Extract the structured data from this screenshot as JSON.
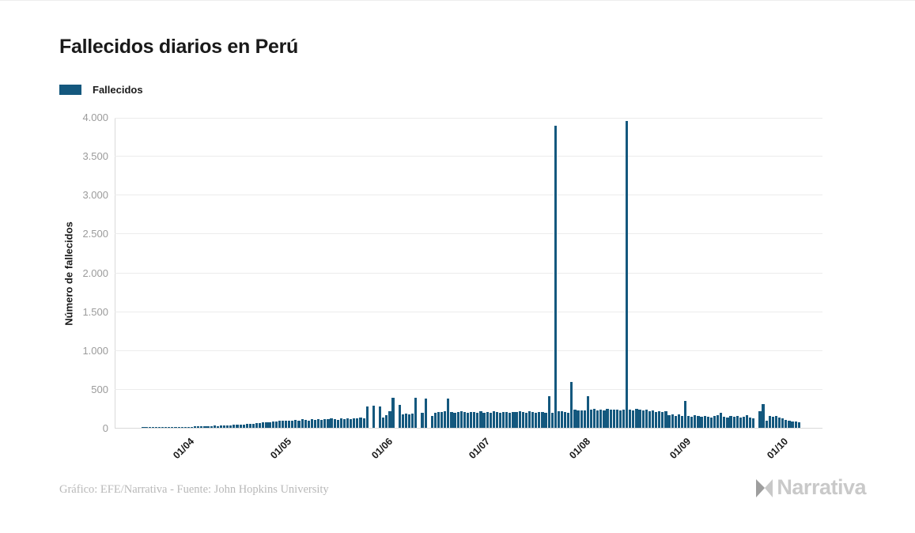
{
  "title": "Fallecidos diarios en Perú",
  "legend": {
    "label": "Fallecidos",
    "color": "#14587e"
  },
  "y_axis": {
    "title": "Número de fallecidos",
    "ticks": [
      "0",
      "500",
      "1.000",
      "1.500",
      "2.000",
      "2.500",
      "3.000",
      "3.500",
      "4.000"
    ]
  },
  "x_axis": {
    "ticks": [
      {
        "label": "01/04",
        "day_index": 22
      },
      {
        "label": "01/05",
        "day_index": 52
      },
      {
        "label": "01/06",
        "day_index": 83
      },
      {
        "label": "01/07",
        "day_index": 113
      },
      {
        "label": "01/08",
        "day_index": 144
      },
      {
        "label": "01/09",
        "day_index": 175
      },
      {
        "label": "01/10",
        "day_index": 205
      }
    ]
  },
  "footer": {
    "credit": "Gráfico: EFE/Narrativa - Fuente: John Hopkins University",
    "brand": "Narrativa"
  },
  "chart_data": {
    "type": "bar",
    "title": "Fallecidos diarios en Perú",
    "series_name": "Fallecidos",
    "xlabel": "",
    "ylabel": "Número de fallecidos",
    "ylim": [
      0,
      4000
    ],
    "y_tick_step": 500,
    "grid": "horizontal",
    "legend_position": "top-left",
    "bar_color": "#14587e",
    "x_start_date": "10/03/2020",
    "x_unit": "day",
    "x_tick_labels": [
      "01/04",
      "01/05",
      "01/06",
      "01/07",
      "01/08",
      "01/09",
      "01/10"
    ],
    "values": [
      0,
      0,
      0,
      0,
      0,
      0,
      0,
      0,
      1,
      2,
      2,
      3,
      3,
      4,
      5,
      6,
      7,
      7,
      9,
      11,
      12,
      14,
      13,
      15,
      17,
      16,
      19,
      22,
      20,
      24,
      26,
      25,
      29,
      32,
      30,
      35,
      38,
      36,
      40,
      44,
      48,
      52,
      56,
      60,
      64,
      68,
      72,
      76,
      80,
      85,
      90,
      95,
      92,
      96,
      88,
      102,
      95,
      108,
      100,
      96,
      110,
      104,
      112,
      98,
      115,
      108,
      118,
      112,
      105,
      120,
      114,
      122,
      116,
      126,
      119,
      128,
      122,
      280,
      0,
      285,
      0,
      280,
      135,
      160,
      210,
      390,
      0,
      295,
      170,
      180,
      175,
      185,
      390,
      0,
      190,
      380,
      0,
      155,
      190,
      205,
      200,
      210,
      375,
      200,
      195,
      205,
      210,
      200,
      195,
      205,
      200,
      195,
      210,
      195,
      205,
      198,
      210,
      202,
      196,
      208,
      200,
      194,
      206,
      199,
      211,
      204,
      197,
      209,
      201,
      195,
      207,
      200,
      193,
      410,
      195,
      3890,
      215,
      210,
      205,
      195,
      590,
      230,
      225,
      220,
      225,
      410,
      230,
      240,
      225,
      235,
      228,
      240,
      232,
      238,
      230,
      226,
      235,
      3950,
      233,
      228,
      240,
      235,
      225,
      230,
      215,
      220,
      205,
      215,
      200,
      210,
      165,
      175,
      155,
      170,
      150,
      350,
      155,
      145,
      160,
      150,
      140,
      155,
      145,
      135,
      150,
      160,
      190,
      145,
      135,
      150,
      140,
      155,
      130,
      145,
      160,
      135,
      125,
      0,
      210,
      310,
      95,
      150,
      140,
      155,
      130,
      120,
      105,
      95,
      85,
      78,
      70
    ]
  }
}
